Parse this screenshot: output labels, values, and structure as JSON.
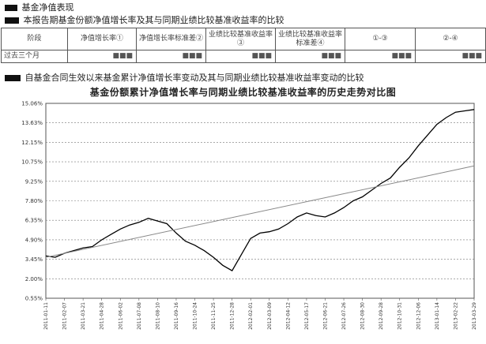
{
  "section": {
    "heading_prefix": "§",
    "heading": "基金净值表现",
    "table_caption_prefix": "§",
    "table_caption": "本报告期基金份额净值增长率及其与同期业绩比较基准收益率的比较",
    "chart_caption_prefix": "§",
    "chart_caption": "自基金合同生效以来基金累计净值增长率变动及其与同期业绩比较基准收益率变动的比较"
  },
  "table": {
    "headers": [
      "阶段",
      "净值增长率①",
      "净值增长率标准差②",
      "业绩比较基准收益率③",
      "业绩比较基准收益率标准差④",
      "①-③",
      "②-④"
    ],
    "rows": [
      [
        "过去三个月",
        "■■■",
        "■■■",
        "■■■",
        "■■■",
        "■■■",
        "■■■"
      ]
    ]
  },
  "chart_data": {
    "type": "line",
    "title": "基金份额累计净值增长率与同期业绩比较基准收益率的历史走势对比图",
    "y_ticks": [
      "15.06%",
      "13.63%",
      "12.15%",
      "10.75%",
      "9.25%",
      "7.80%",
      "6.35%",
      "4.90%",
      "3.45%",
      "2.00%",
      "0.55%"
    ],
    "ylim": [
      0.55,
      15.06
    ],
    "x_ticks": [
      "2011-01-11",
      "2011-02-07",
      "2011-03-21",
      "2011-04-28",
      "2011-06-02",
      "2011-07-08",
      "2011-08-10",
      "2011-09-16",
      "2011-10-24",
      "2011-11-25",
      "2011-12-28",
      "2012-02-01",
      "2012-03-09",
      "2012-04-12",
      "2012-05-17",
      "2012-06-21",
      "2012-07-26",
      "2012-08-30",
      "2012-09-28",
      "2012-10-31",
      "2012-12-06",
      "2013-01-14",
      "2013-02-22",
      "2013-03-29"
    ],
    "grid": true,
    "series": [
      {
        "color": "#000000",
        "x": [
          0,
          0.5,
          1.0,
          1.5,
          2.0,
          2.5,
          3.0,
          3.5,
          4.0,
          4.5,
          5.0,
          5.5,
          6.0,
          6.5,
          7.0,
          7.5,
          8.0,
          8.5,
          9.0,
          9.5,
          10.0,
          10.5,
          11.0,
          11.5,
          12.0,
          12.5,
          13.0,
          13.5,
          14.0,
          14.5,
          15.0,
          15.5,
          16.0,
          16.5,
          17.0,
          17.5,
          18.0,
          18.5,
          19.0,
          19.5,
          20.0,
          20.5,
          21.0,
          21.5,
          22.0,
          22.5,
          23.0
        ],
        "y": [
          3.7,
          3.6,
          3.9,
          4.1,
          4.3,
          4.4,
          4.9,
          5.3,
          5.7,
          6.0,
          6.2,
          6.5,
          6.3,
          6.1,
          5.4,
          4.8,
          4.5,
          4.1,
          3.6,
          3.0,
          2.6,
          3.8,
          5.0,
          5.4,
          5.5,
          5.7,
          6.1,
          6.6,
          6.9,
          6.7,
          6.6,
          6.9,
          7.3,
          7.8,
          8.1,
          8.6,
          9.1,
          9.5,
          10.3,
          11.0,
          11.9,
          12.7,
          13.5,
          14.0,
          14.4,
          14.5,
          14.6
        ]
      },
      {
        "color": "#888888",
        "x": [
          0,
          23.0
        ],
        "y": [
          3.6,
          10.4
        ]
      }
    ]
  }
}
